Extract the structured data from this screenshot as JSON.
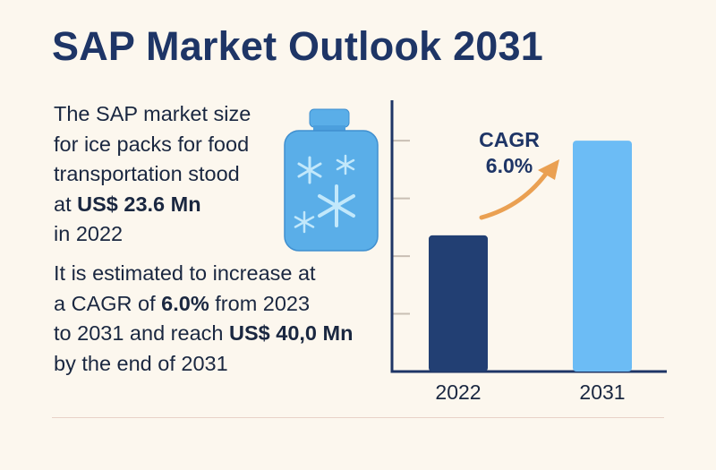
{
  "title": "SAP Market Outlook 2031",
  "paragraph1": [
    {
      "segments": [
        {
          "text": "The SAP market size",
          "bold": false
        }
      ]
    },
    {
      "segments": [
        {
          "text": "for ice packs for food",
          "bold": false
        }
      ]
    },
    {
      "segments": [
        {
          "text": "transportation stood",
          "bold": false
        }
      ]
    },
    {
      "segments": [
        {
          "text": "at ",
          "bold": false
        },
        {
          "text": "US$ 23.6 Mn",
          "bold": true
        }
      ]
    },
    {
      "segments": [
        {
          "text": "in 2022",
          "bold": false
        }
      ]
    }
  ],
  "paragraph2": [
    {
      "segments": [
        {
          "text": "It is estimated to increase at",
          "bold": false
        }
      ]
    },
    {
      "segments": [
        {
          "text": "a CAGR of ",
          "bold": false
        },
        {
          "text": "6.0%",
          "bold": true
        },
        {
          "text": " from 2023",
          "bold": false
        }
      ]
    },
    {
      "segments": [
        {
          "text": "to 2031 and reach ",
          "bold": false
        },
        {
          "text": "US$ 40,0 Mn",
          "bold": true
        }
      ]
    },
    {
      "segments": [
        {
          "text": "by the end of 2031",
          "bold": false
        }
      ]
    }
  ],
  "icon": "ice-pack-icon",
  "colors": {
    "title": "#1e3566",
    "bar_2022": "#223f73",
    "bar_2031": "#6cbcf5",
    "arrow": "#eaa052",
    "icon_body": "#5aaee8",
    "snowflake": "#bfe7fb"
  },
  "chart_data": {
    "type": "bar",
    "categories": [
      "2022",
      "2031"
    ],
    "values": [
      23.6,
      40.0
    ],
    "annotation": [
      "CAGR",
      "6.0%"
    ],
    "ylim": [
      0,
      47
    ],
    "yticks": [
      10,
      20,
      30,
      40
    ],
    "grid": false
  }
}
